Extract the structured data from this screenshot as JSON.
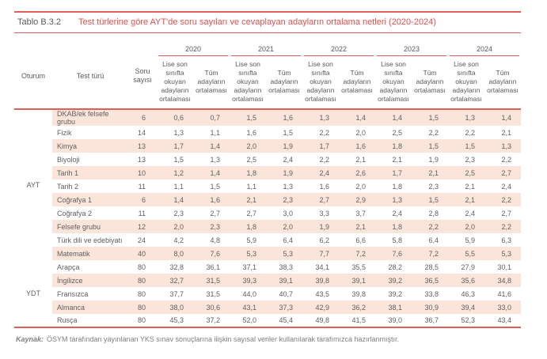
{
  "title_bar": {
    "label": "Tablo B.3.2",
    "title": "Test türlerine göre AYT'de soru sayıları ve cevaplayan adayların ortalama netleri (2020-2024)"
  },
  "colors": {
    "accent_red_line": "#e05d5a",
    "title_red_text": "#e14f4b",
    "row_stripe": "#fbe5da",
    "body_text": "#5f5f5f"
  },
  "table": {
    "col_headers": {
      "oturum": "Oturum",
      "test_turu": "Test türü",
      "soru_sayisi": "Soru sayısı"
    },
    "years": [
      "2020",
      "2021",
      "2022",
      "2023",
      "2024"
    ],
    "subheaders": [
      "Lise son sınıfta okuyan adayların ortalaması",
      "Tüm adayların ortalaması"
    ],
    "groups": [
      {
        "oturum": "AYT",
        "rows": [
          {
            "test": "DKAB/ek felsefe grubu",
            "soru": "6",
            "values": [
              "0,6",
              "0,7",
              "1,5",
              "1,6",
              "1,3",
              "1,4",
              "1,4",
              "1,5",
              "1,3",
              "1,4"
            ]
          },
          {
            "test": "Fizik",
            "soru": "14",
            "values": [
              "1,3",
              "1,1",
              "1,6",
              "1,5",
              "2,2",
              "2,0",
              "2,5",
              "2,2",
              "2,2",
              "2,1"
            ]
          },
          {
            "test": "Kimya",
            "soru": "13",
            "values": [
              "1,7",
              "1,4",
              "2,0",
              "1,9",
              "1,7",
              "1,6",
              "1,8",
              "1,5",
              "1,5",
              "1,3"
            ]
          },
          {
            "test": "Biyoloji",
            "soru": "13",
            "values": [
              "1,5",
              "1,3",
              "2,5",
              "2,4",
              "2,2",
              "2,1",
              "2,1",
              "1,9",
              "2,3",
              "2,2"
            ]
          },
          {
            "test": "Tarih 1",
            "soru": "10",
            "values": [
              "1,2",
              "1,4",
              "1,8",
              "1,9",
              "2,4",
              "2,6",
              "1,7",
              "2,1",
              "2,5",
              "2,7"
            ]
          },
          {
            "test": "Tarih 2",
            "soru": "11",
            "values": [
              "1,1",
              "1,5",
              "1,1",
              "1,3",
              "1,6",
              "2,0",
              "1,8",
              "2,3",
              "2,1",
              "2,4"
            ]
          },
          {
            "test": "Coğrafya 1",
            "soru": "6",
            "values": [
              "1,4",
              "1,6",
              "2,1",
              "2,3",
              "2,7",
              "2,9",
              "1,3",
              "1,5",
              "2,1",
              "2,2"
            ]
          },
          {
            "test": "Coğrafya 2",
            "soru": "11",
            "values": [
              "2,3",
              "2,7",
              "2,7",
              "3,0",
              "3,3",
              "3,7",
              "2,4",
              "2,8",
              "2,4",
              "2,7"
            ]
          },
          {
            "test": "Felsefe grubu",
            "soru": "12",
            "values": [
              "2,0",
              "2,3",
              "1,8",
              "2,0",
              "1,9",
              "2,1",
              "1,8",
              "2,2",
              "2,0",
              "2,2"
            ]
          },
          {
            "test": "Türk dili ve edebiyatı",
            "soru": "24",
            "values": [
              "4,2",
              "4,8",
              "5,9",
              "6,4",
              "6,2",
              "6,6",
              "5,8",
              "6,4",
              "5,9",
              "6,3"
            ]
          },
          {
            "test": "Matematik",
            "soru": "40",
            "values": [
              "8,0",
              "7,6",
              "5,3",
              "5,3",
              "7,7",
              "7,2",
              "7,6",
              "7,2",
              "5,5",
              "5,3"
            ]
          }
        ]
      },
      {
        "oturum": "YDT",
        "rows": [
          {
            "test": "Arapça",
            "soru": "80",
            "values": [
              "32,8",
              "36,1",
              "37,1",
              "38,3",
              "34,1",
              "35,5",
              "28,2",
              "28,5",
              "27,9",
              "30,1"
            ]
          },
          {
            "test": "İngilizce",
            "soru": "80",
            "values": [
              "32,7",
              "31,5",
              "39,3",
              "39,1",
              "39,8",
              "39,1",
              "39,2",
              "36,5",
              "35,6",
              "34,8"
            ]
          },
          {
            "test": "Fransızca",
            "soru": "80",
            "values": [
              "37,7",
              "31,5",
              "44,0",
              "40,7",
              "43,5",
              "39,8",
              "39,2",
              "33,8",
              "46,3",
              "41,6"
            ]
          },
          {
            "test": "Almanca",
            "soru": "80",
            "values": [
              "38,0",
              "30,6",
              "43,1",
              "37,3",
              "42,9",
              "36,2",
              "38,1",
              "30,9",
              "39,4",
              "33,0"
            ]
          },
          {
            "test": "Rusça",
            "soru": "80",
            "values": [
              "45,3",
              "37,2",
              "52,0",
              "45,4",
              "49,8",
              "41,5",
              "39,0",
              "36,7",
              "52,3",
              "43,4"
            ]
          }
        ]
      }
    ]
  },
  "footer": {
    "kaynak_label": "Kaynak:",
    "kaynak_text": "ÖSYM tarafından yayınlanan YKS sınav sonuçlarına ilişkin sayısal veriler kullanılarak tarafımızca hazırlanmıştır."
  }
}
